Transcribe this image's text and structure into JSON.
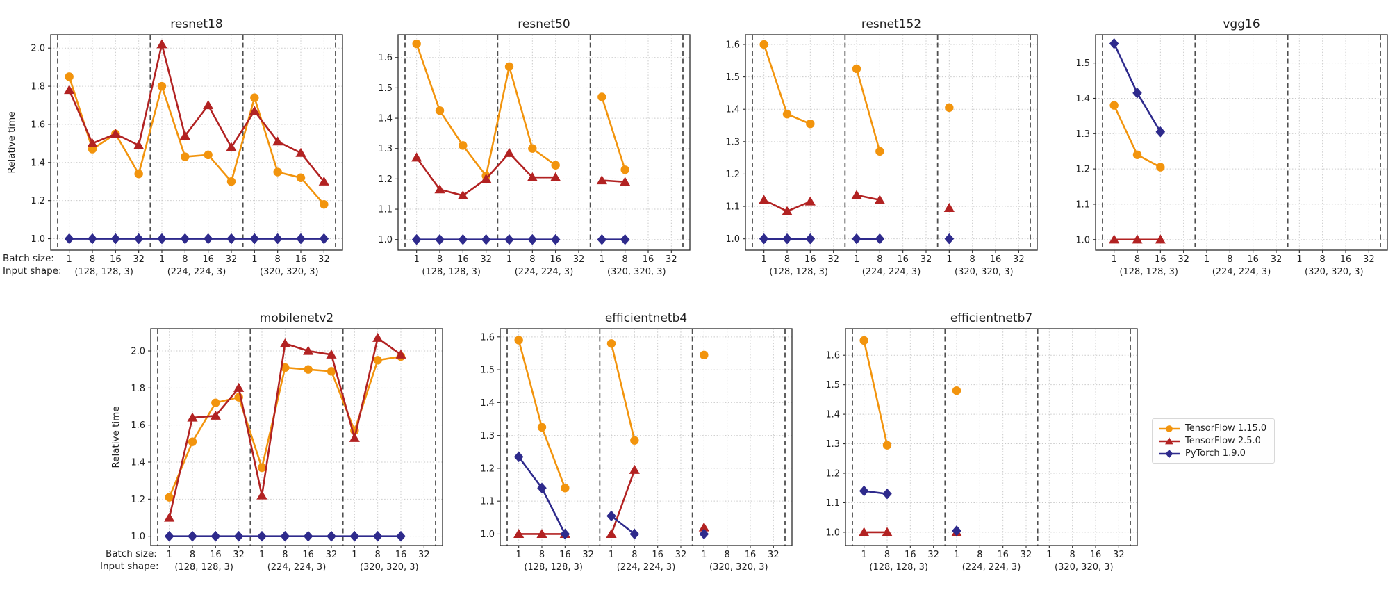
{
  "figure": {
    "ylabel": "Relative time",
    "batch_size_prefix": "Batch size:",
    "input_shape_prefix": "Input shape:",
    "batch_sizes": [
      "1",
      "8",
      "16",
      "32"
    ],
    "input_shapes": [
      "(128, 128, 3)",
      "(224, 224, 3)",
      "(320, 320, 3)"
    ]
  },
  "legend": {
    "position": "right-middle",
    "items": [
      {
        "name": "TensorFlow 1.15.0",
        "color": "#F2940D",
        "marker": "circle"
      },
      {
        "name": "TensorFlow 2.5.0",
        "color": "#B22222",
        "marker": "triangle"
      },
      {
        "name": "PyTorch 1.9.0",
        "color": "#2E2A8C",
        "marker": "diamond"
      }
    ]
  },
  "chart_data": [
    {
      "type": "line",
      "title": "resnet18",
      "ylim": [
        0.94,
        2.07
      ],
      "yticks": [
        1.0,
        1.2,
        1.4,
        1.6,
        1.8,
        2.0
      ],
      "x_slots": "3 input-shape groups x batch sizes 1,8,16,32",
      "grid": true,
      "series": [
        {
          "name": "TensorFlow 1.15.0",
          "values": [
            1.85,
            1.47,
            1.55,
            1.34,
            1.8,
            1.43,
            1.44,
            1.3,
            1.74,
            1.35,
            1.32,
            1.18
          ]
        },
        {
          "name": "TensorFlow 2.5.0",
          "values": [
            1.78,
            1.5,
            1.55,
            1.49,
            2.02,
            1.54,
            1.7,
            1.48,
            1.67,
            1.51,
            1.45,
            1.3
          ]
        },
        {
          "name": "PyTorch 1.9.0",
          "values": [
            1.0,
            1.0,
            1.0,
            1.0,
            1.0,
            1.0,
            1.0,
            1.0,
            1.0,
            1.0,
            1.0,
            1.0
          ]
        }
      ]
    },
    {
      "type": "line",
      "title": "resnet50",
      "ylim": [
        0.965,
        1.675
      ],
      "yticks": [
        1.0,
        1.1,
        1.2,
        1.3,
        1.4,
        1.5,
        1.6
      ],
      "grid": true,
      "series": [
        {
          "name": "TensorFlow 1.15.0",
          "values": [
            1.645,
            1.425,
            1.31,
            1.21,
            1.57,
            1.3,
            1.245,
            null,
            1.47,
            1.23,
            null,
            null
          ]
        },
        {
          "name": "TensorFlow 2.5.0",
          "values": [
            1.27,
            1.165,
            1.145,
            1.2,
            1.285,
            1.205,
            1.205,
            null,
            1.195,
            1.19,
            null,
            null
          ]
        },
        {
          "name": "PyTorch 1.9.0",
          "values": [
            1.0,
            1.0,
            1.0,
            1.0,
            1.0,
            1.0,
            1.0,
            null,
            1.0,
            1.0,
            null,
            null
          ]
        }
      ]
    },
    {
      "type": "line",
      "title": "resnet152",
      "ylim": [
        0.965,
        1.63
      ],
      "yticks": [
        1.0,
        1.1,
        1.2,
        1.3,
        1.4,
        1.5,
        1.6
      ],
      "grid": true,
      "series": [
        {
          "name": "TensorFlow 1.15.0",
          "values": [
            1.6,
            1.385,
            1.355,
            null,
            1.525,
            1.27,
            null,
            null,
            1.405,
            null,
            null,
            null
          ]
        },
        {
          "name": "TensorFlow 2.5.0",
          "values": [
            1.12,
            1.085,
            1.115,
            null,
            1.135,
            1.12,
            null,
            null,
            1.095,
            null,
            null,
            null
          ]
        },
        {
          "name": "PyTorch 1.9.0",
          "values": [
            1.0,
            1.0,
            1.0,
            null,
            1.0,
            1.0,
            null,
            null,
            1.0,
            null,
            null,
            null
          ]
        }
      ]
    },
    {
      "type": "line",
      "title": "vgg16",
      "ylim": [
        0.97,
        1.58
      ],
      "yticks": [
        1.0,
        1.1,
        1.2,
        1.3,
        1.4,
        1.5
      ],
      "grid": true,
      "series": [
        {
          "name": "TensorFlow 1.15.0",
          "values": [
            1.38,
            1.24,
            1.205,
            null,
            null,
            null,
            null,
            null,
            null,
            null,
            null,
            null
          ]
        },
        {
          "name": "TensorFlow 2.5.0",
          "values": [
            1.0,
            1.0,
            1.0,
            null,
            null,
            null,
            null,
            null,
            null,
            null,
            null,
            null
          ]
        },
        {
          "name": "PyTorch 1.9.0",
          "values": [
            1.555,
            1.415,
            1.305,
            null,
            null,
            null,
            null,
            null,
            null,
            null,
            null,
            null
          ]
        }
      ]
    },
    {
      "type": "line",
      "title": "mobilenetv2",
      "ylim": [
        0.95,
        2.12
      ],
      "yticks": [
        1.0,
        1.2,
        1.4,
        1.6,
        1.8,
        2.0
      ],
      "grid": true,
      "series": [
        {
          "name": "TensorFlow 1.15.0",
          "values": [
            1.21,
            1.51,
            1.72,
            1.75,
            1.37,
            1.91,
            1.9,
            1.89,
            1.57,
            1.95,
            1.97,
            null
          ]
        },
        {
          "name": "TensorFlow 2.5.0",
          "values": [
            1.1,
            1.64,
            1.65,
            1.8,
            1.22,
            2.04,
            2.0,
            1.98,
            1.53,
            2.07,
            1.98,
            null
          ]
        },
        {
          "name": "PyTorch 1.9.0",
          "values": [
            1.0,
            1.0,
            1.0,
            1.0,
            1.0,
            1.0,
            1.0,
            1.0,
            1.0,
            1.0,
            1.0,
            null
          ]
        }
      ]
    },
    {
      "type": "line",
      "title": "efficientnetb4",
      "ylim": [
        0.965,
        1.625
      ],
      "yticks": [
        1.0,
        1.1,
        1.2,
        1.3,
        1.4,
        1.5,
        1.6
      ],
      "grid": true,
      "series": [
        {
          "name": "TensorFlow 1.15.0",
          "values": [
            1.59,
            1.325,
            1.14,
            null,
            1.58,
            1.285,
            null,
            null,
            1.545,
            null,
            null,
            null
          ]
        },
        {
          "name": "TensorFlow 2.5.0",
          "values": [
            1.0,
            1.0,
            1.0,
            null,
            1.0,
            1.195,
            null,
            null,
            1.02,
            null,
            null,
            null
          ]
        },
        {
          "name": "PyTorch 1.9.0",
          "values": [
            1.235,
            1.14,
            1.0,
            null,
            1.055,
            1.0,
            null,
            null,
            1.0,
            null,
            null,
            null
          ]
        }
      ]
    },
    {
      "type": "line",
      "title": "efficientnetb7",
      "ylim": [
        0.955,
        1.69
      ],
      "yticks": [
        1.0,
        1.1,
        1.2,
        1.3,
        1.4,
        1.5,
        1.6
      ],
      "grid": true,
      "series": [
        {
          "name": "TensorFlow 1.15.0",
          "values": [
            1.65,
            1.295,
            null,
            null,
            1.48,
            null,
            null,
            null,
            null,
            null,
            null,
            null
          ]
        },
        {
          "name": "TensorFlow 2.5.0",
          "values": [
            1.0,
            1.0,
            null,
            null,
            1.0,
            null,
            null,
            null,
            null,
            null,
            null,
            null
          ]
        },
        {
          "name": "PyTorch 1.9.0",
          "values": [
            1.14,
            1.13,
            null,
            null,
            1.005,
            null,
            null,
            null,
            null,
            null,
            null,
            null
          ]
        }
      ]
    }
  ]
}
